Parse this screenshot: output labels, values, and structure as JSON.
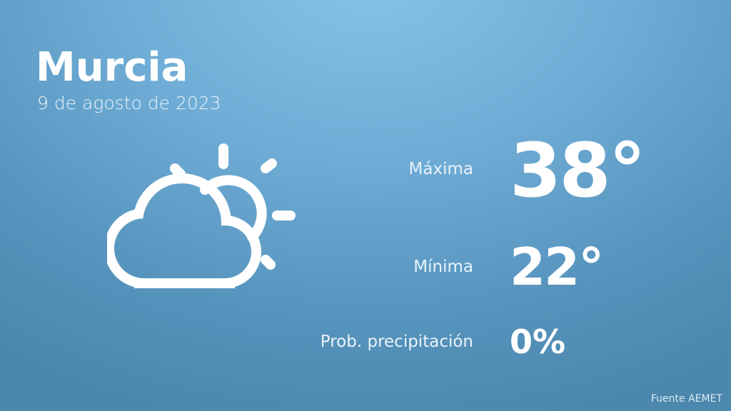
{
  "city": "Murcia",
  "date": "9 de agosto de 2023",
  "weather_icon": "partly-cloudy-icon",
  "max": {
    "label": "Máxima",
    "value": "38°"
  },
  "min": {
    "label": "Mínima",
    "value": "22°"
  },
  "precip": {
    "label": "Prob. precipitación",
    "value": "0%"
  },
  "source": "Fuente AEMET",
  "colors": {
    "background_top": "#86c4e8",
    "background_bottom": "#4c87ad",
    "text": "#ffffff"
  }
}
